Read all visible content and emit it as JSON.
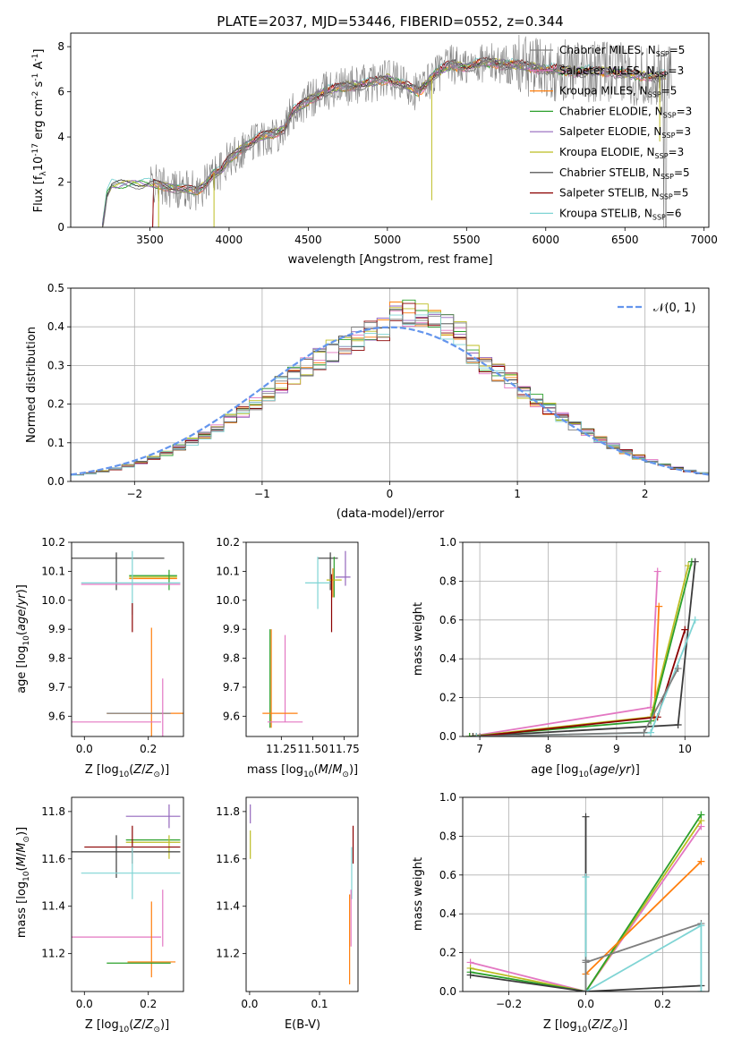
{
  "title": "PLATE=2037, MJD=53446, FIBERID=0552, z=0.344",
  "colors": {
    "series": [
      "#7f7f7f",
      "#e377c2",
      "#ff7f0e",
      "#2ca02c",
      "#9467bd",
      "#bcbd22",
      "#3c3c3c",
      "#8b0000",
      "#7fd4d4",
      "#ff7f0e",
      "#2ca02c"
    ],
    "normal": "#6495ed",
    "grid": "#b0b0b0"
  },
  "chart_data": [
    {
      "id": "spectrum",
      "type": "line",
      "xlabel": "wavelength [Angstrom, rest frame]",
      "ylabel": "Flux [f_λ 10^-17 erg cm^-2 s^-1 A^-1]",
      "xlim": [
        3000,
        7030
      ],
      "ylim": [
        0,
        8.6
      ],
      "xticks": [
        3500,
        4000,
        4500,
        5000,
        5500,
        6000,
        6500,
        7000
      ],
      "yticks": [
        0,
        2,
        4,
        6,
        8
      ],
      "grid": false,
      "legend_position": "right",
      "legend": [
        {
          "label": "Chabrier MILES, N",
          "sub": "SSP",
          "suffix": "=5"
        },
        {
          "label": "Salpeter MILES, N",
          "sub": "SSP",
          "suffix": "=3"
        },
        {
          "label": "Kroupa MILES, N",
          "sub": "SSP",
          "suffix": "=5"
        },
        {
          "label": "Chabrier ELODIE, N",
          "sub": "SSP",
          "suffix": "=3"
        },
        {
          "label": "Salpeter ELODIE, N",
          "sub": "SSP",
          "suffix": "=3"
        },
        {
          "label": "Kroupa ELODIE, N",
          "sub": "SSP",
          "suffix": "=3"
        },
        {
          "label": "Chabrier STELIB, N",
          "sub": "SSP",
          "suffix": "=5"
        },
        {
          "label": "Salpeter STELIB, N",
          "sub": "SSP",
          "suffix": "=5"
        },
        {
          "label": "Kroupa STELIB, N",
          "sub": "SSP",
          "suffix": "=6"
        }
      ],
      "model_knots": [
        [
          3200,
          0
        ],
        [
          3230,
          1.5
        ],
        [
          3260,
          1.9
        ],
        [
          3350,
          1.9
        ],
        [
          3500,
          1.95
        ],
        [
          3600,
          1.8
        ],
        [
          3700,
          1.7
        ],
        [
          3800,
          1.6
        ],
        [
          3850,
          1.9
        ],
        [
          3900,
          2.4
        ],
        [
          3950,
          2.5
        ],
        [
          4000,
          3.0
        ],
        [
          4100,
          3.6
        ],
        [
          4200,
          4.0
        ],
        [
          4300,
          4.2
        ],
        [
          4350,
          4.4
        ],
        [
          4400,
          5.1
        ],
        [
          4500,
          5.6
        ],
        [
          4600,
          6.0
        ],
        [
          4700,
          6.2
        ],
        [
          4800,
          6.3
        ],
        [
          4900,
          6.4
        ],
        [
          5000,
          6.6
        ],
        [
          5100,
          6.3
        ],
        [
          5200,
          6.0
        ],
        [
          5300,
          6.8
        ],
        [
          5400,
          7.2
        ],
        [
          5500,
          7.1
        ],
        [
          5600,
          7.3
        ],
        [
          5800,
          7.2
        ],
        [
          6000,
          7.0
        ],
        [
          6200,
          6.9
        ],
        [
          6400,
          6.9
        ],
        [
          6600,
          6.7
        ],
        [
          6760,
          6.7
        ]
      ]
    },
    {
      "id": "residuals",
      "type": "line",
      "xlabel": "(data-model)/error",
      "ylabel": "Normed distribution",
      "xlim": [
        -2.5,
        2.5
      ],
      "ylim": [
        0,
        0.5
      ],
      "xticks": [
        -2,
        -1,
        0,
        1,
        2
      ],
      "yticks": [
        0.0,
        0.1,
        0.2,
        0.3,
        0.4,
        0.5
      ],
      "grid": true,
      "legend_position": "top-right",
      "legend": [
        {
          "label": "𝒩(0, 1)"
        }
      ]
    },
    {
      "id": "age-vs-Z",
      "type": "scatter",
      "xlabel": "Z [log10(Z/Z⊙)]",
      "ylabel": "age [log10(age/yr)]",
      "xlim": [
        -0.04,
        0.31
      ],
      "ylim": [
        9.53,
        10.2
      ],
      "xticks": [
        0.0,
        0.2
      ],
      "yticks": [
        9.6,
        9.7,
        9.8,
        9.9,
        10.0,
        10.1,
        10.2
      ],
      "grid": false,
      "points": [
        {
          "c": 6,
          "x": 0.1,
          "xe": 0.15,
          "y": 10.145,
          "ye": 0.0
        },
        {
          "c": 6,
          "x": 0.1,
          "xe": 0.0,
          "y": 10.1,
          "ye": 0.065
        },
        {
          "c": 3,
          "x": 0.215,
          "xe": 0.075,
          "y": 10.085,
          "ye": 0.0
        },
        {
          "c": 2,
          "x": 0.215,
          "xe": 0.075,
          "y": 10.075,
          "ye": 0.0
        },
        {
          "c": 5,
          "x": 0.215,
          "xe": 0.075,
          "y": 10.08,
          "ye": 0.0
        },
        {
          "c": 3,
          "x": 0.265,
          "xe": 0.0,
          "y": 10.07,
          "ye": 0.035
        },
        {
          "c": 8,
          "x": 0.145,
          "xe": 0.155,
          "y": 10.06,
          "ye": 0.0
        },
        {
          "c": 1,
          "x": 0.145,
          "xe": 0.155,
          "y": 10.055,
          "ye": 0.0
        },
        {
          "c": 8,
          "x": 0.15,
          "xe": 0.0,
          "y": 10.06,
          "ye": 0.11
        },
        {
          "c": 7,
          "x": 0.15,
          "xe": 0.0,
          "y": 9.94,
          "ye": 0.05
        },
        {
          "c": 2,
          "x": 0.21,
          "xe": 0.0,
          "y": 9.7,
          "ye": 0.205
        },
        {
          "c": 2,
          "x": 0.21,
          "xe": 0.14,
          "y": 9.61,
          "ye": 0.0
        },
        {
          "c": 0,
          "x": 0.17,
          "xe": 0.1,
          "y": 9.61,
          "ye": 0.0
        },
        {
          "c": 1,
          "x": 0.1,
          "xe": 0.14,
          "y": 9.58,
          "ye": 0.0
        },
        {
          "c": 1,
          "x": 0.245,
          "xe": 0.0,
          "y": 9.63,
          "ye": 0.1
        }
      ]
    },
    {
      "id": "age-vs-mass",
      "type": "scatter",
      "xlabel": "mass [log10(M/M⊙)]",
      "ylabel": "",
      "xlim": [
        10.97,
        11.86
      ],
      "ylim": [
        9.53,
        10.2
      ],
      "xticks": [
        11.25,
        11.5,
        11.75
      ],
      "yticks": [
        9.6,
        9.7,
        9.8,
        9.9,
        10.0,
        10.1,
        10.2
      ],
      "grid": false,
      "points": [
        {
          "c": 6,
          "x": 11.62,
          "xe": 0.08,
          "y": 10.145,
          "ye": 0.0
        },
        {
          "c": 6,
          "x": 11.64,
          "xe": 0.0,
          "y": 10.1,
          "ye": 0.065
        },
        {
          "c": 3,
          "x": 11.67,
          "xe": 0.0,
          "y": 10.08,
          "ye": 0.07
        },
        {
          "c": 5,
          "x": 11.67,
          "xe": 0.06,
          "y": 10.07,
          "ye": 0.0
        },
        {
          "c": 4,
          "x": 11.76,
          "xe": 0.0,
          "y": 10.11,
          "ye": 0.06
        },
        {
          "c": 4,
          "x": 11.74,
          "xe": 0.06,
          "y": 10.08,
          "ye": 0.0
        },
        {
          "c": 2,
          "x": 11.66,
          "xe": 0.0,
          "y": 10.06,
          "ye": 0.05
        },
        {
          "c": 8,
          "x": 11.54,
          "xe": 0.1,
          "y": 10.06,
          "ye": 0.0
        },
        {
          "c": 8,
          "x": 11.54,
          "xe": 0.0,
          "y": 10.06,
          "ye": 0.09
        },
        {
          "c": 7,
          "x": 11.65,
          "xe": 0.0,
          "y": 9.99,
          "ye": 0.1
        },
        {
          "c": 2,
          "x": 11.17,
          "xe": 0.0,
          "y": 9.73,
          "ye": 0.17
        },
        {
          "c": 10,
          "x": 11.16,
          "xe": 0.0,
          "y": 9.73,
          "ye": 0.17
        },
        {
          "c": 1,
          "x": 11.28,
          "xe": 0.0,
          "y": 9.73,
          "ye": 0.15
        },
        {
          "c": 2,
          "x": 11.24,
          "xe": 0.14,
          "y": 9.61,
          "ye": 0.0
        },
        {
          "c": 1,
          "x": 11.28,
          "xe": 0.14,
          "y": 9.58,
          "ye": 0.0
        }
      ]
    },
    {
      "id": "mass-weight-vs-age",
      "type": "line",
      "xlabel": "age [log10(age/yr)]",
      "ylabel": "mass weight",
      "xlim": [
        6.75,
        10.35
      ],
      "ylim": [
        0,
        1.0
      ],
      "xticks": [
        7,
        8,
        9,
        10
      ],
      "yticks": [
        0.0,
        0.2,
        0.4,
        0.6,
        0.8,
        1.0
      ],
      "grid": true,
      "series": [
        {
          "c": 1,
          "points": [
            [
              6.85,
              0.0
            ],
            [
              9.5,
              0.15
            ],
            [
              9.6,
              0.85
            ]
          ]
        },
        {
          "c": 2,
          "points": [
            [
              6.9,
              0.0
            ],
            [
              9.55,
              0.1
            ],
            [
              9.62,
              0.67
            ]
          ]
        },
        {
          "c": 5,
          "points": [
            [
              6.85,
              0.0
            ],
            [
              9.5,
              0.1
            ],
            [
              10.05,
              0.88
            ]
          ]
        },
        {
          "c": 3,
          "points": [
            [
              6.85,
              0.0
            ],
            [
              9.5,
              0.08
            ],
            [
              10.1,
              0.9
            ]
          ]
        },
        {
          "c": 6,
          "points": [
            [
              6.9,
              0.0
            ],
            [
              9.9,
              0.06
            ],
            [
              10.15,
              0.9
            ]
          ]
        },
        {
          "c": 7,
          "points": [
            [
              6.95,
              0.0
            ],
            [
              9.6,
              0.1
            ],
            [
              10.0,
              0.55
            ]
          ]
        },
        {
          "c": 8,
          "points": [
            [
              6.95,
              0.0
            ],
            [
              9.5,
              0.02
            ],
            [
              10.15,
              0.6
            ]
          ]
        },
        {
          "c": 0,
          "points": [
            [
              7.0,
              0.0
            ],
            [
              9.4,
              0.02
            ],
            [
              9.9,
              0.35
            ]
          ]
        }
      ]
    },
    {
      "id": "mass-vs-Z",
      "type": "scatter",
      "xlabel": "Z [log10(Z/Z⊙)]",
      "ylabel": "mass [log10(M/M⊙)]",
      "xlim": [
        -0.04,
        0.31
      ],
      "ylim": [
        11.04,
        11.86
      ],
      "xticks": [
        0.0,
        0.2
      ],
      "yticks": [
        11.2,
        11.4,
        11.6,
        11.8
      ],
      "grid": false,
      "points": [
        {
          "c": 4,
          "x": 0.215,
          "xe": 0.085,
          "y": 11.78,
          "ye": 0.0
        },
        {
          "c": 4,
          "x": 0.265,
          "xe": 0.0,
          "y": 11.78,
          "ye": 0.05
        },
        {
          "c": 3,
          "x": 0.215,
          "xe": 0.085,
          "y": 11.68,
          "ye": 0.0
        },
        {
          "c": 5,
          "x": 0.215,
          "xe": 0.085,
          "y": 11.67,
          "ye": 0.0
        },
        {
          "c": 5,
          "x": 0.265,
          "xe": 0.0,
          "y": 11.65,
          "ye": 0.05
        },
        {
          "c": 7,
          "x": 0.15,
          "xe": 0.15,
          "y": 11.65,
          "ye": 0.0
        },
        {
          "c": 7,
          "x": 0.15,
          "xe": 0.0,
          "y": 11.66,
          "ye": 0.08
        },
        {
          "c": 6,
          "x": 0.1,
          "xe": 0.2,
          "y": 11.63,
          "ye": 0.0
        },
        {
          "c": 6,
          "x": 0.1,
          "xe": 0.0,
          "y": 11.61,
          "ye": 0.09
        },
        {
          "c": 8,
          "x": 0.145,
          "xe": 0.155,
          "y": 11.54,
          "ye": 0.0
        },
        {
          "c": 8,
          "x": 0.15,
          "xe": 0.0,
          "y": 11.54,
          "ye": 0.11
        },
        {
          "c": 1,
          "x": 0.245,
          "xe": 0.0,
          "y": 11.35,
          "ye": 0.12
        },
        {
          "c": 1,
          "x": 0.1,
          "xe": 0.14,
          "y": 11.27,
          "ye": 0.0
        },
        {
          "c": 2,
          "x": 0.21,
          "xe": 0.0,
          "y": 11.26,
          "ye": 0.16
        },
        {
          "c": 2,
          "x": 0.21,
          "xe": 0.075,
          "y": 11.165,
          "ye": 0.0
        },
        {
          "c": 10,
          "x": 0.17,
          "xe": 0.1,
          "y": 11.16,
          "ye": 0.0
        }
      ]
    },
    {
      "id": "mass-vs-ebv",
      "type": "scatter",
      "xlabel": "E(B-V)",
      "ylabel": "",
      "xlim": [
        -0.005,
        0.155
      ],
      "ylim": [
        11.04,
        11.86
      ],
      "xticks": [
        0.0,
        0.1
      ],
      "yticks": [
        11.2,
        11.4,
        11.6,
        11.8
      ],
      "grid": false,
      "points": [
        {
          "c": 4,
          "x": 0.001,
          "xe": 0.0,
          "y": 11.79,
          "ye": 0.04
        },
        {
          "c": 5,
          "x": 0.001,
          "xe": 0.0,
          "y": 11.66,
          "ye": 0.06
        },
        {
          "c": 7,
          "x": 0.148,
          "xe": 0.0,
          "y": 11.66,
          "ye": 0.08
        },
        {
          "c": 8,
          "x": 0.146,
          "xe": 0.0,
          "y": 11.54,
          "ye": 0.11
        },
        {
          "c": 1,
          "x": 0.145,
          "xe": 0.0,
          "y": 11.35,
          "ye": 0.12
        },
        {
          "c": 2,
          "x": 0.143,
          "xe": 0.0,
          "y": 11.26,
          "ye": 0.19
        }
      ]
    },
    {
      "id": "mass-weight-vs-Z",
      "type": "line",
      "xlabel": "Z [log10(Z/Z⊙)]",
      "ylabel": "mass weight",
      "xlim": [
        -0.32,
        0.32
      ],
      "ylim": [
        0,
        1.0
      ],
      "xticks": [
        -0.2,
        0.0,
        0.2
      ],
      "yticks": [
        0.0,
        0.2,
        0.4,
        0.6,
        0.8,
        1.0
      ],
      "grid": true,
      "series": [
        {
          "c": 1,
          "points": [
            [
              -0.3,
              0.15
            ],
            [
              0.0,
              0.0
            ],
            [
              0.3,
              0.85
            ]
          ]
        },
        {
          "c": 5,
          "points": [
            [
              -0.3,
              0.12
            ],
            [
              0.0,
              0.0
            ],
            [
              0.3,
              0.88
            ]
          ]
        },
        {
          "c": 3,
          "points": [
            [
              -0.3,
              0.1
            ],
            [
              0.0,
              0.0
            ],
            [
              0.3,
              0.91
            ]
          ]
        },
        {
          "c": 6,
          "points": [
            [
              -0.3,
              0.085
            ],
            [
              0.0,
              0.0
            ],
            [
              0.3,
              0.03
            ]
          ]
        },
        {
          "c": 2,
          "points": [
            [
              0.0,
              0.09
            ],
            [
              0.3,
              0.67
            ]
          ]
        },
        {
          "c": 6,
          "points": [
            [
              0.0,
              0.0
            ],
            [
              0.0,
              0.9
            ]
          ]
        },
        {
          "c": 8,
          "points": [
            [
              0.0,
              0.0
            ],
            [
              0.0,
              0.59
            ]
          ]
        },
        {
          "c": 0,
          "points": [
            [
              0.0,
              0.15
            ],
            [
              0.3,
              0.35
            ]
          ]
        },
        {
          "c": 8,
          "points": [
            [
              0.0,
              0.0
            ],
            [
              0.3,
              0.34
            ],
            [
              0.3,
              0.0
            ]
          ]
        },
        {
          "c": 0,
          "points": [
            [
              0.0,
              0.0
            ],
            [
              0.0,
              0.16
            ]
          ]
        }
      ]
    }
  ]
}
